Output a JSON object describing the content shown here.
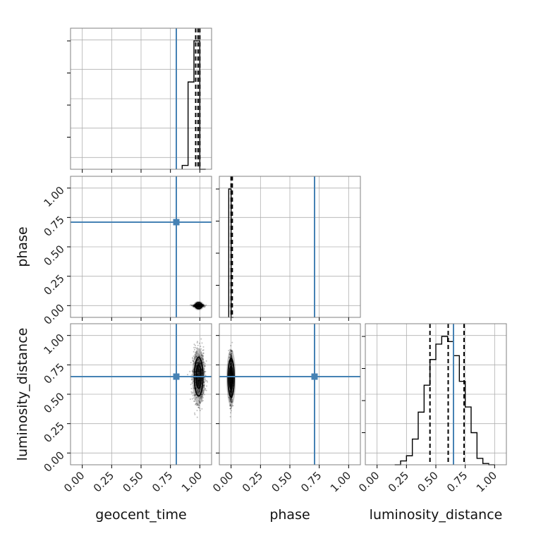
{
  "chart_data": {
    "type": "scatter",
    "parameters": [
      "geocent_time",
      "phase",
      "luminosity_distance"
    ],
    "axis_labels": {
      "geocent_time": "geocent_time",
      "phase": "phase",
      "luminosity_distance": "luminosity_distance"
    },
    "ticks": [
      0.0,
      0.25,
      0.5,
      0.75,
      1.0
    ],
    "tick_labels": [
      "0.00",
      "0.25",
      "0.50",
      "0.75",
      "1.00"
    ],
    "range": [
      -0.1,
      1.1
    ],
    "truth_color": "#4682b4",
    "truths": {
      "geocent_time": 0.8,
      "phase": 0.71,
      "luminosity_distance": 0.65
    },
    "histograms": {
      "geocent_time": {
        "bins": [
          0.85,
          0.9,
          0.95,
          1.0,
          1.05
        ],
        "counts": [
          0.03,
          0.68,
          1.0,
          0.0
        ],
        "quantiles": [
          0.965,
          0.985,
          1.0
        ]
      },
      "phase": {
        "bins": [
          -0.02,
          0.0,
          0.02
        ],
        "counts": [
          1.0,
          0.0
        ],
        "quantiles": [
          0.0,
          0.005,
          0.01
        ]
      },
      "luminosity_distance": {
        "bins": [
          0.15,
          0.2,
          0.25,
          0.3,
          0.35,
          0.4,
          0.45,
          0.5,
          0.55,
          0.6,
          0.65,
          0.7,
          0.75,
          0.8,
          0.85,
          0.9,
          0.95,
          1.0
        ],
        "counts": [
          0.0,
          0.03,
          0.07,
          0.2,
          0.41,
          0.62,
          0.82,
          0.94,
          1.0,
          0.96,
          0.85,
          0.65,
          0.45,
          0.25,
          0.05,
          0.01,
          0.0
        ],
        "quantiles": [
          0.45,
          0.605,
          0.74
        ]
      }
    },
    "joint": {
      "phase_vs_geocent_time": {
        "x_center": 0.99,
        "y_center": 0.0,
        "x_spread": 0.02,
        "y_spread": 0.005
      },
      "luminosity_distance_vs_geocent_time": {
        "x_center": 0.99,
        "y_center": 0.65,
        "x_spread": 0.025,
        "y_spread": 0.11
      },
      "luminosity_distance_vs_phase": {
        "x_center": 0.0,
        "y_center": 0.64,
        "x_spread": 0.006,
        "y_spread": 0.11
      }
    }
  }
}
